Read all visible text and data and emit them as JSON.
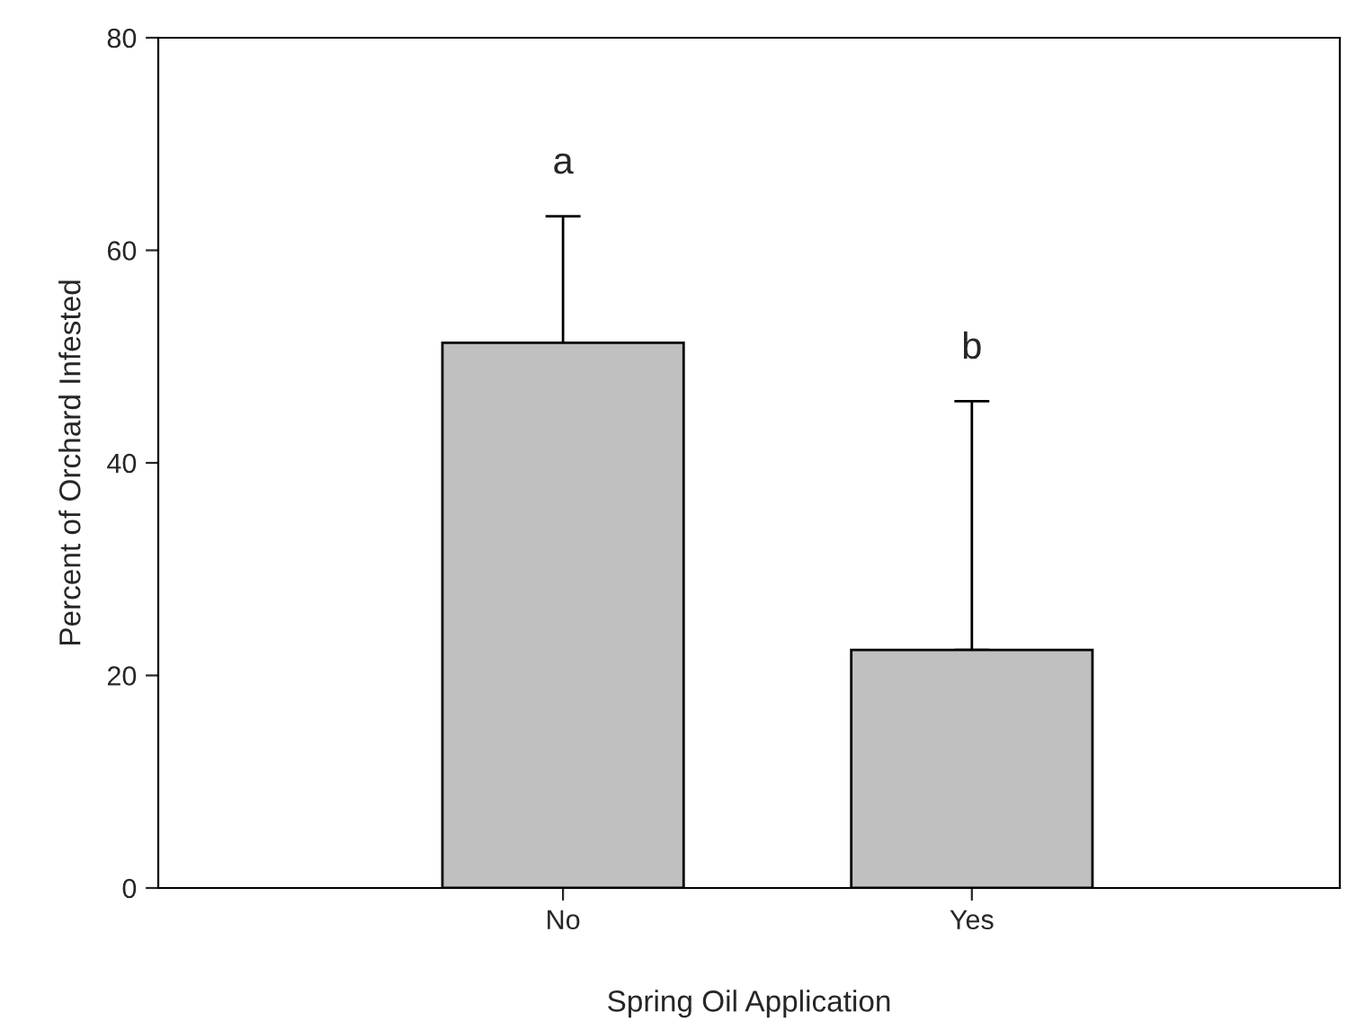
{
  "chart_data": {
    "type": "bar",
    "xlabel": "Spring Oil Application",
    "ylabel": "Percent of Orchard Infested",
    "categories": [
      "No",
      "Yes"
    ],
    "values": [
      51.3,
      22.4
    ],
    "errors": [
      [
        51.3,
        63.2
      ],
      [
        22.4,
        45.8
      ]
    ],
    "color": "#c0c0c0",
    "ylim": [
      0,
      80
    ],
    "yticks": [
      0,
      20,
      40,
      60,
      80
    ],
    "annotations": [
      "a",
      "b"
    ],
    "grid": false,
    "legend": false
  }
}
